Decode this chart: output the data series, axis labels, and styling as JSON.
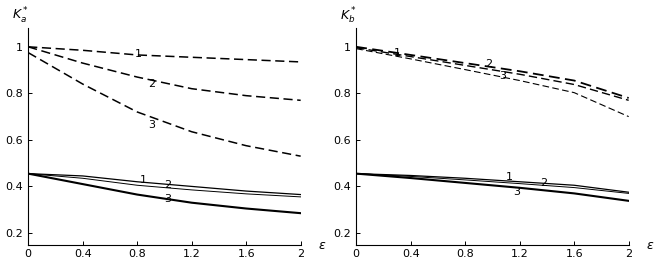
{
  "left_ylabel": "$K_a^*$",
  "right_ylabel": "$K_b^*$",
  "xlabel": "ε",
  "xlim": [
    0,
    2.0
  ],
  "ylim": [
    0.15,
    1.08
  ],
  "xticks": [
    0,
    0.4,
    0.8,
    1.2,
    1.6,
    2.0
  ],
  "yticks": [
    0.2,
    0.4,
    0.6,
    0.8,
    1.0
  ],
  "xticklabels": [
    "0",
    "0.4",
    "0.8",
    "1.2",
    "1.6",
    "2"
  ],
  "yticklabels": [
    "0.2",
    "0.4",
    "0.6",
    "0.8",
    "1"
  ],
  "left_dashed": {
    "1": {
      "x": [
        0,
        0.4,
        0.8,
        1.2,
        1.6,
        2.0
      ],
      "y": [
        1.0,
        0.985,
        0.965,
        0.955,
        0.945,
        0.935
      ]
    },
    "2": {
      "x": [
        0,
        0.4,
        0.8,
        1.2,
        1.6,
        2.0
      ],
      "y": [
        1.0,
        0.93,
        0.87,
        0.82,
        0.79,
        0.77
      ]
    },
    "3": {
      "x": [
        0,
        0.4,
        0.8,
        1.2,
        1.6,
        2.0
      ],
      "y": [
        0.975,
        0.84,
        0.72,
        0.635,
        0.575,
        0.53
      ]
    }
  },
  "left_solid": {
    "1": {
      "x": [
        0,
        0.4,
        0.8,
        1.2,
        1.6,
        2.0
      ],
      "y": [
        0.455,
        0.445,
        0.42,
        0.4,
        0.38,
        0.365
      ]
    },
    "2": {
      "x": [
        0,
        0.4,
        0.8,
        1.2,
        1.6,
        2.0
      ],
      "y": [
        0.455,
        0.435,
        0.405,
        0.385,
        0.368,
        0.355
      ]
    },
    "3": {
      "x": [
        0,
        0.4,
        0.8,
        1.2,
        1.6,
        2.0
      ],
      "y": [
        0.455,
        0.41,
        0.365,
        0.33,
        0.305,
        0.285
      ]
    }
  },
  "right_dashed": {
    "1": {
      "x": [
        0,
        0.4,
        0.8,
        1.2,
        1.6,
        2.0
      ],
      "y": [
        1.0,
        0.965,
        0.93,
        0.895,
        0.855,
        0.78
      ]
    },
    "2": {
      "x": [
        0,
        0.4,
        0.8,
        1.2,
        1.6,
        2.0
      ],
      "y": [
        0.996,
        0.958,
        0.92,
        0.882,
        0.838,
        0.77
      ]
    },
    "3": {
      "x": [
        0,
        0.4,
        0.8,
        1.2,
        1.6,
        2.0
      ],
      "y": [
        0.992,
        0.948,
        0.902,
        0.855,
        0.803,
        0.7
      ]
    }
  },
  "right_solid": {
    "1": {
      "x": [
        0,
        0.4,
        0.8,
        1.2,
        1.6,
        2.0
      ],
      "y": [
        0.455,
        0.447,
        0.435,
        0.42,
        0.405,
        0.375
      ]
    },
    "2": {
      "x": [
        0,
        0.4,
        0.8,
        1.2,
        1.6,
        2.0
      ],
      "y": [
        0.455,
        0.443,
        0.428,
        0.412,
        0.395,
        0.37
      ]
    },
    "3": {
      "x": [
        0,
        0.4,
        0.8,
        1.2,
        1.6,
        2.0
      ],
      "y": [
        0.455,
        0.436,
        0.415,
        0.394,
        0.37,
        0.338
      ]
    }
  },
  "left_label_dashed": {
    "1": [
      0.78,
      0.968
    ],
    "2": [
      0.88,
      0.84
    ],
    "3": [
      0.88,
      0.665
    ]
  },
  "left_label_solid": {
    "1": [
      0.82,
      0.428
    ],
    "2": [
      1.0,
      0.404
    ],
    "3": [
      1.0,
      0.348
    ]
  },
  "right_label_dashed": {
    "1": [
      0.28,
      0.972
    ],
    "2": [
      0.95,
      0.928
    ],
    "3": [
      1.05,
      0.875
    ]
  },
  "right_label_solid": {
    "1": [
      1.1,
      0.44
    ],
    "2": [
      1.35,
      0.415
    ],
    "3": [
      1.15,
      0.377
    ]
  }
}
